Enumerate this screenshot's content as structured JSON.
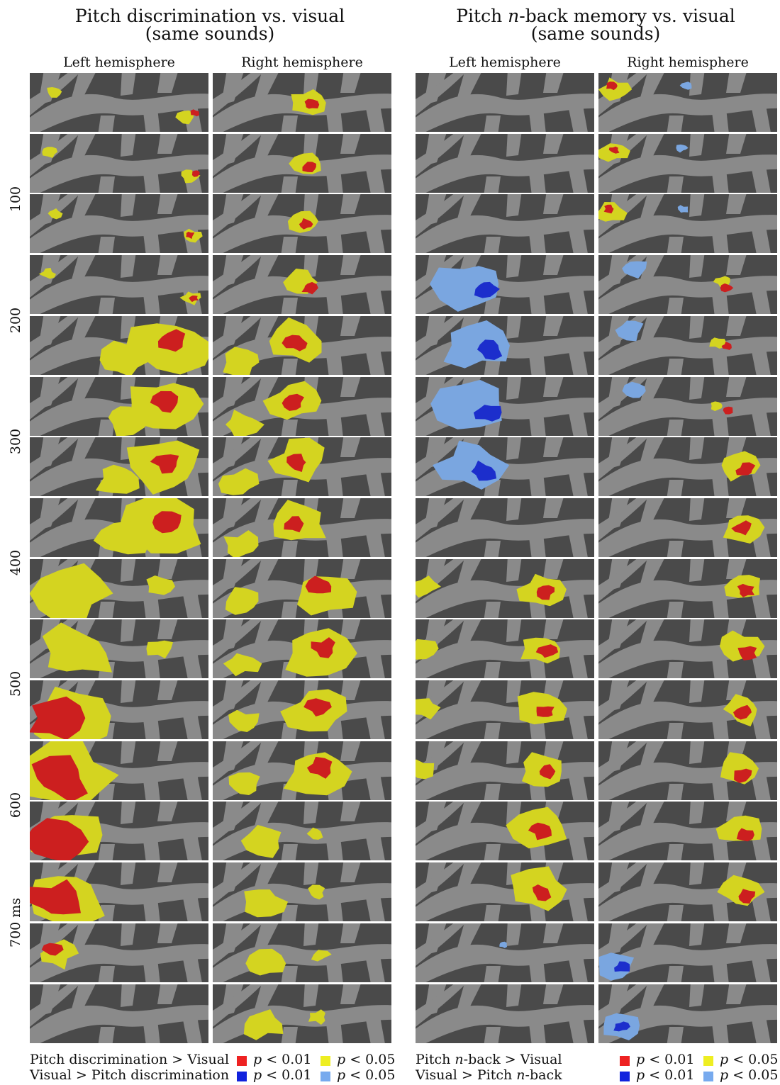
{
  "panels": [
    {
      "title_line1": "Pitch discrimination vs. visual",
      "title_line2": "(same sounds)",
      "left_label": "Left hemisphere",
      "right_label": "Right hemisphere",
      "legend_pos": "Pitch discrimination > Visual",
      "legend_neg": "Visual > Pitch discrimination"
    },
    {
      "title_line1_pre": "Pitch ",
      "title_line1_em": "n",
      "title_line1_post": "-back memory vs. visual",
      "title_line2": "(same sounds)",
      "left_label": "Left hemisphere",
      "right_label": "Right hemisphere",
      "legend_pos_pre": "Pitch ",
      "legend_pos_em": "n",
      "legend_pos_post": "-back > Visual",
      "legend_neg_pre": "Visual > Pitch ",
      "legend_neg_em": "n",
      "legend_neg_post": "-back"
    }
  ],
  "time_labels": [
    "100",
    "200",
    "300",
    "400",
    "500",
    "600",
    "700 ms"
  ],
  "p_symbol": "p",
  "p_strict": "< 0.01",
  "p_loose": "< 0.05",
  "colors": {
    "pos_strict": "#ee2222",
    "pos_loose": "#eeee22",
    "neg_strict": "#1122dd",
    "neg_loose": "#77aaee",
    "sulcus": "#4a4a4a",
    "gyrus": "#8a8a8a",
    "red_blob": "#cc1f1f",
    "yellow_blob": "#d4d420",
    "blue_blob": "#1c2ecc",
    "lightblue_blob": "#7aa6e0"
  }
}
